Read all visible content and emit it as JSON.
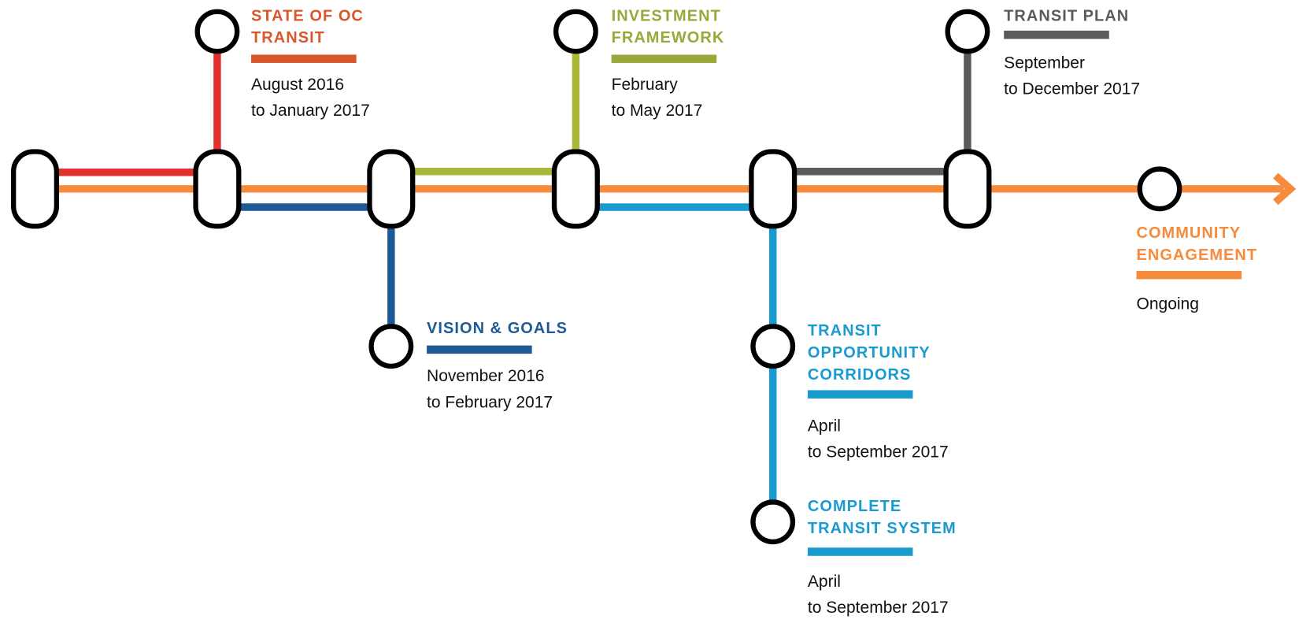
{
  "phases": [
    {
      "title": [
        "STATE OF OC",
        "TRANSIT"
      ],
      "dates": [
        "August 2016",
        "to January 2017"
      ],
      "color": "#d9572b",
      "line_color": "#e2302f"
    },
    {
      "title": [
        "VISION & GOALS"
      ],
      "dates": [
        "November 2016",
        "to February 2017"
      ],
      "color": "#1e5a96",
      "line_color": "#1e5a96"
    },
    {
      "title": [
        "INVESTMENT",
        "FRAMEWORK"
      ],
      "dates": [
        "February",
        "to May 2017"
      ],
      "color": "#9aa83a",
      "line_color": "#a9b83a"
    },
    {
      "title": [
        "TRANSIT",
        "OPPORTUNITY",
        "CORRIDORS"
      ],
      "dates": [
        "April",
        "to September 2017"
      ],
      "color": "#1a9bd0",
      "line_color": "#1a9bd0"
    },
    {
      "title": [
        "COMPLETE",
        "TRANSIT SYSTEM"
      ],
      "dates": [
        "April",
        "to September 2017"
      ],
      "color": "#1a9bd0",
      "line_color": "#1a9bd0"
    },
    {
      "title": [
        "TRANSIT PLAN"
      ],
      "dates": [
        "September",
        "to December 2017"
      ],
      "color": "#5b5b5b",
      "line_color": "#5b5b5b"
    },
    {
      "title": [
        "COMMUNITY",
        "ENGAGEMENT"
      ],
      "dates": [
        "Ongoing"
      ],
      "color": "#f68b3c",
      "line_color": "#f68b3c"
    }
  ]
}
